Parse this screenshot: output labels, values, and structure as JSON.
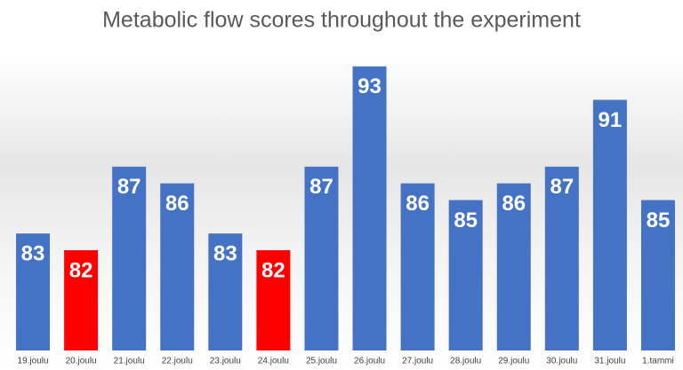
{
  "chart_data": {
    "type": "bar",
    "title": "Metabolic flow scores throughout the experiment",
    "categories": [
      "19.joulu",
      "20.joulu",
      "21.joulu",
      "22.joulu",
      "23.joulu",
      "24.joulu",
      "25.joulu",
      "26.joulu",
      "27.joulu",
      "28.joulu",
      "29.joulu",
      "30.joulu",
      "31.joulu",
      "1.tammi"
    ],
    "values": [
      83,
      82,
      87,
      86,
      83,
      82,
      87,
      93,
      86,
      85,
      86,
      87,
      91,
      85
    ],
    "colors": [
      "#4472c4",
      "#ff0000",
      "#4472c4",
      "#4472c4",
      "#4472c4",
      "#ff0000",
      "#4472c4",
      "#4472c4",
      "#4472c4",
      "#4472c4",
      "#4472c4",
      "#4472c4",
      "#4472c4",
      "#4472c4"
    ],
    "ylim": [
      76,
      94
    ]
  }
}
